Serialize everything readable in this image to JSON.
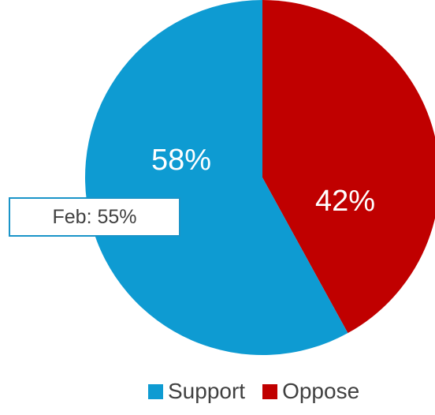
{
  "chart_data": {
    "type": "pie",
    "series": [
      {
        "name": "Support",
        "value": 58,
        "label": "58%",
        "color": "#0e9bd2"
      },
      {
        "name": "Oppose",
        "value": 42,
        "label": "42%",
        "color": "#c00000"
      }
    ],
    "annotation": "Feb: 55%",
    "legend_position": "bottom",
    "start": "right slice begins at 12 o'clock, proceeds clockwise"
  },
  "legend": {
    "support_label": "Support",
    "oppose_label": "Oppose"
  },
  "colors": {
    "support": "#0e9bd2",
    "oppose": "#c00000",
    "callout_border": "#1a94c8",
    "text": "#404040"
  }
}
